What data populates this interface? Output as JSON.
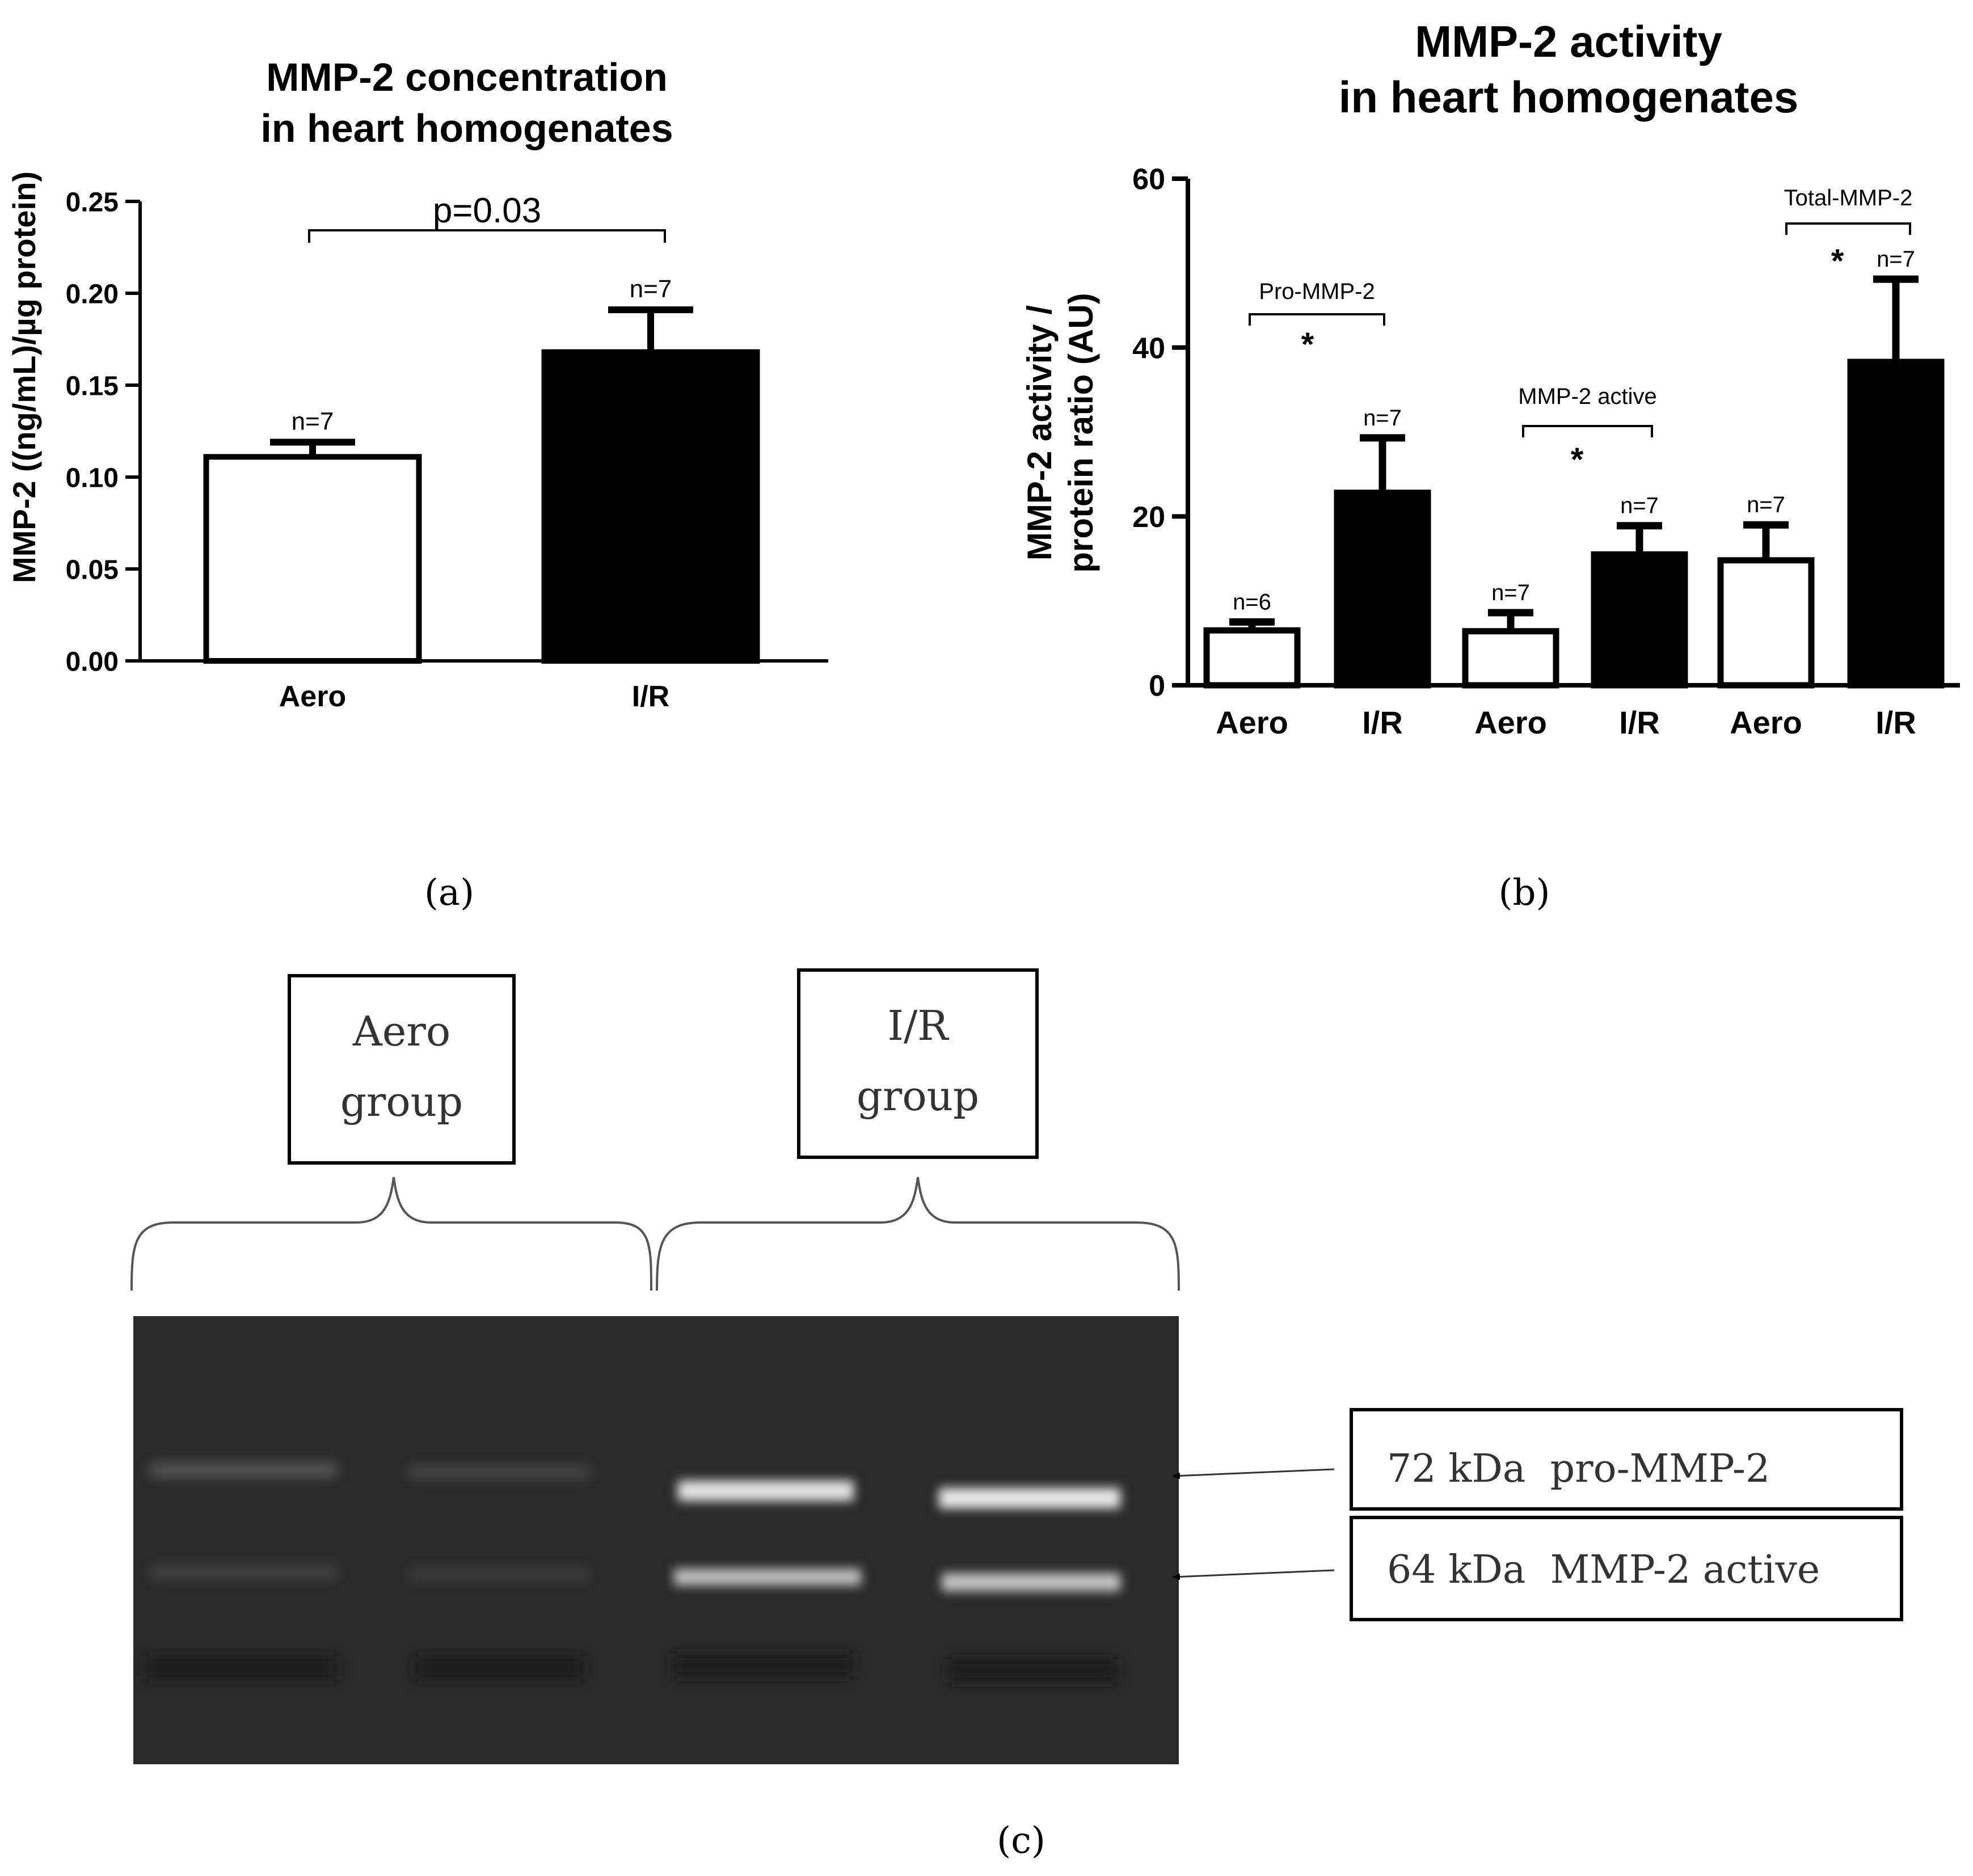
{
  "colors": {
    "aero_fill": "#ffffff",
    "ir_fill": "#000000",
    "axis": "#000000",
    "gel_bg": "#2a2a2a",
    "band": "#d9d9d9"
  },
  "panel_a": {
    "label": "(a)",
    "chart_data": {
      "type": "bar",
      "title": [
        "MMP-2 concentration",
        "in heart homogenates"
      ],
      "ylabel": "MMP-2 ((ng/mL)/µg protein)",
      "ylim": [
        0,
        0.25
      ],
      "yticks": [
        "0.00",
        "0.05",
        "0.10",
        "0.15",
        "0.20",
        "0.25"
      ],
      "ytick_values": [
        0,
        0.05,
        0.1,
        0.15,
        0.2,
        0.25
      ],
      "categories": [
        "Aero",
        "I/R"
      ],
      "values": [
        0.111,
        0.168
      ],
      "errors": [
        0.008,
        0.023
      ],
      "n_labels": [
        "n=7",
        "n=7"
      ],
      "fills": [
        "white",
        "black"
      ],
      "annotation": {
        "text": "p=0.03",
        "from": 0,
        "to": 1
      }
    }
  },
  "panel_b": {
    "label": "(b)",
    "chart_data": {
      "type": "bar",
      "title": [
        "MMP-2 activity",
        "in heart homogenates"
      ],
      "ylabel": [
        "MMP-2 activity /",
        "protein ratio (AU)"
      ],
      "ylim": [
        0,
        60
      ],
      "yticks": [
        "0",
        "20",
        "40",
        "60"
      ],
      "ytick_values": [
        0,
        20,
        40,
        60
      ],
      "categories": [
        "Aero",
        "I/R",
        "Aero",
        "I/R",
        "Aero",
        "I/R"
      ],
      "values": [
        6.5,
        22.8,
        6.4,
        15.5,
        14.8,
        38.3
      ],
      "errors": [
        1.0,
        6.5,
        2.2,
        3.4,
        4.2,
        9.8
      ],
      "n_labels": [
        "n=6",
        "n=7",
        "n=7",
        "n=7",
        "n=7",
        "n=7"
      ],
      "fills": [
        "white",
        "black",
        "white",
        "black",
        "white",
        "black"
      ],
      "groups": [
        {
          "name": "Pro-MMP-2",
          "mark": "*",
          "from": 0,
          "to": 1
        },
        {
          "name": "MMP-2 active",
          "mark": "*",
          "from": 2,
          "to": 3
        },
        {
          "name": "Total-MMP-2",
          "mark": "*",
          "from": 4,
          "to": 5
        }
      ]
    }
  },
  "panel_c": {
    "label": "(c)",
    "group_aero": [
      "Aero",
      "group"
    ],
    "group_ir": [
      "I/R",
      "group"
    ],
    "band_labels": [
      "72 kDa  pro-MMP-2",
      "64 kDa  MMP-2 active"
    ]
  }
}
